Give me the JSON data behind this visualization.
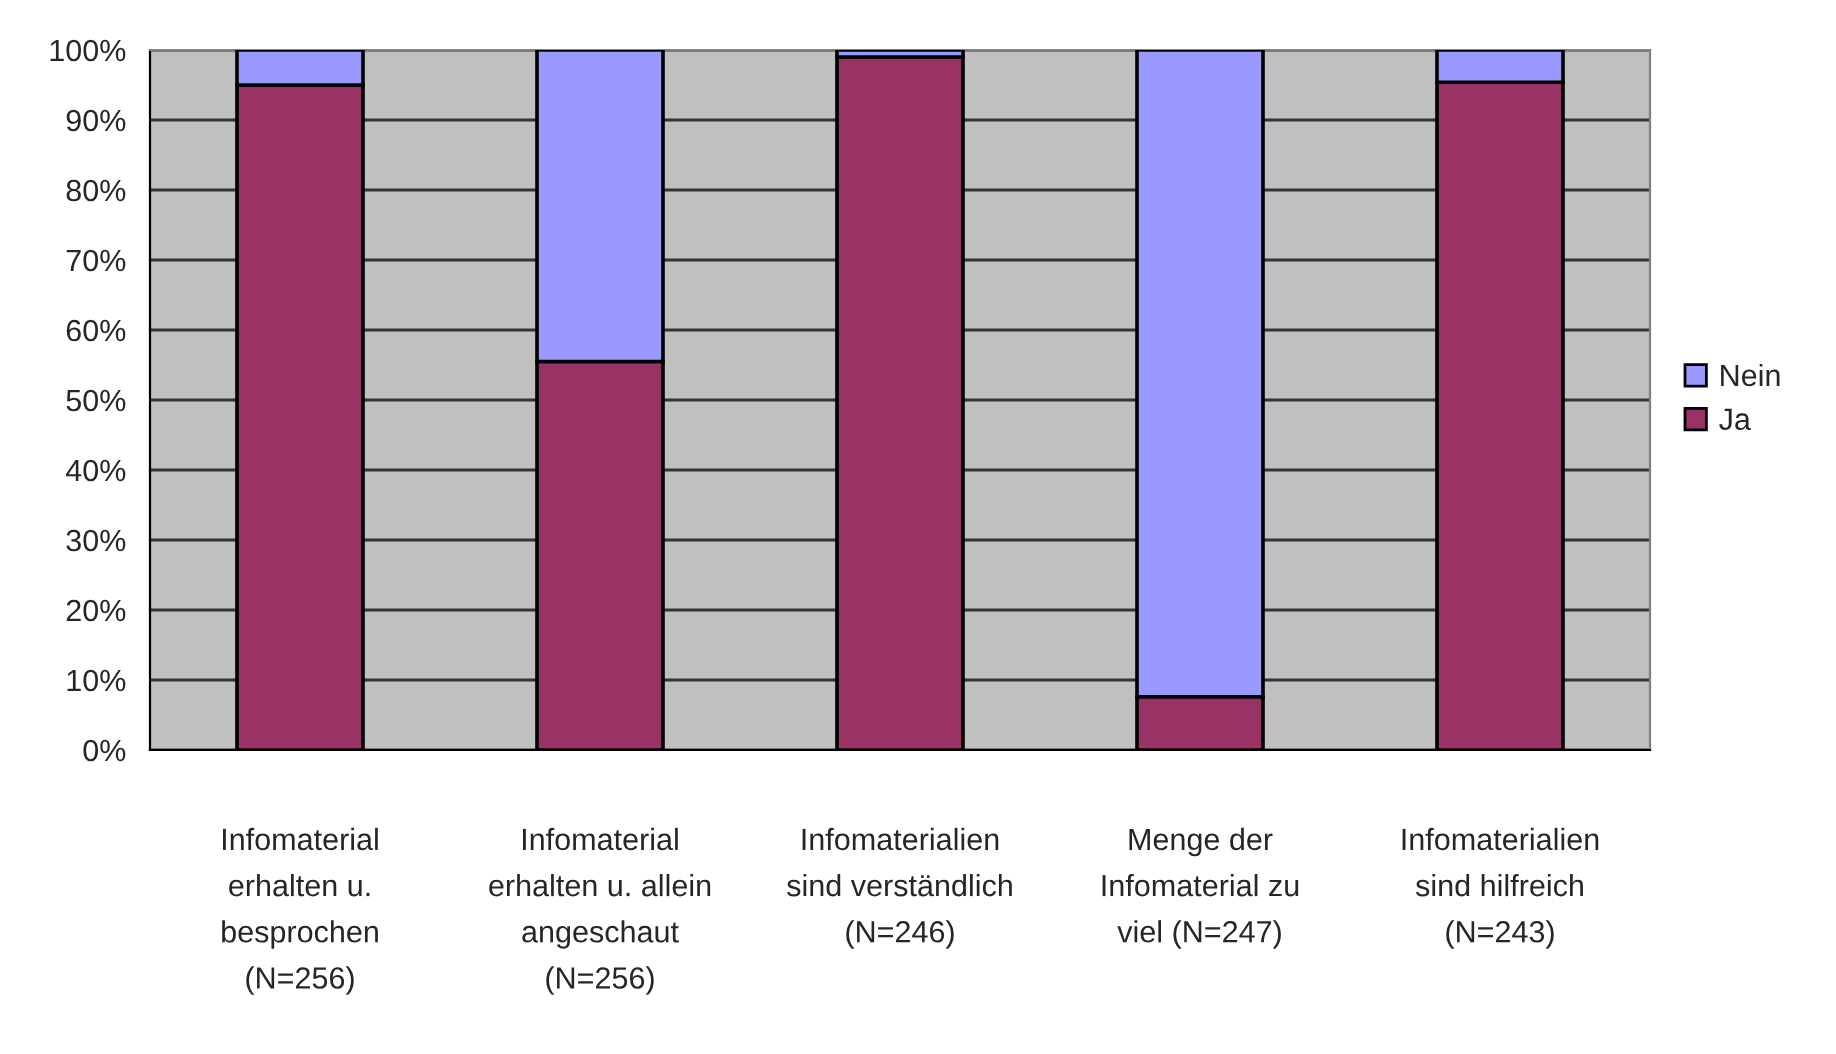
{
  "chart_data": {
    "type": "bar",
    "stacked": true,
    "categories": [
      "Infomaterial\nerhalten u.\nbesprochen\n(N=256)",
      "Infomaterial\nerhalten u. allein\nangeschaut\n(N=256)",
      "Infomaterialien\nsind verständlich\n(N=246)",
      "Menge der\nInfomaterial zu\nviel (N=247)",
      "Infomaterialien\nsind hilfreich\n(N=243)"
    ],
    "series": [
      {
        "name": "Ja",
        "color": "#993366",
        "values": [
          95,
          55.5,
          99,
          7.6,
          95.4
        ]
      },
      {
        "name": "Nein",
        "color": "#9999ff",
        "values": [
          5,
          44.5,
          1,
          92.4,
          4.6
        ]
      }
    ],
    "ylim": [
      0,
      100
    ],
    "yticks": [
      {
        "value": 0,
        "label": "0%"
      },
      {
        "value": 10,
        "label": "10%"
      },
      {
        "value": 20,
        "label": "20%"
      },
      {
        "value": 30,
        "label": "30%"
      },
      {
        "value": 40,
        "label": "40%"
      },
      {
        "value": 50,
        "label": "50%"
      },
      {
        "value": 60,
        "label": "60%"
      },
      {
        "value": 70,
        "label": "70%"
      },
      {
        "value": 80,
        "label": "80%"
      },
      {
        "value": 90,
        "label": "90%"
      },
      {
        "value": 100,
        "label": "100%"
      }
    ],
    "grid": "y",
    "legend": "right"
  }
}
